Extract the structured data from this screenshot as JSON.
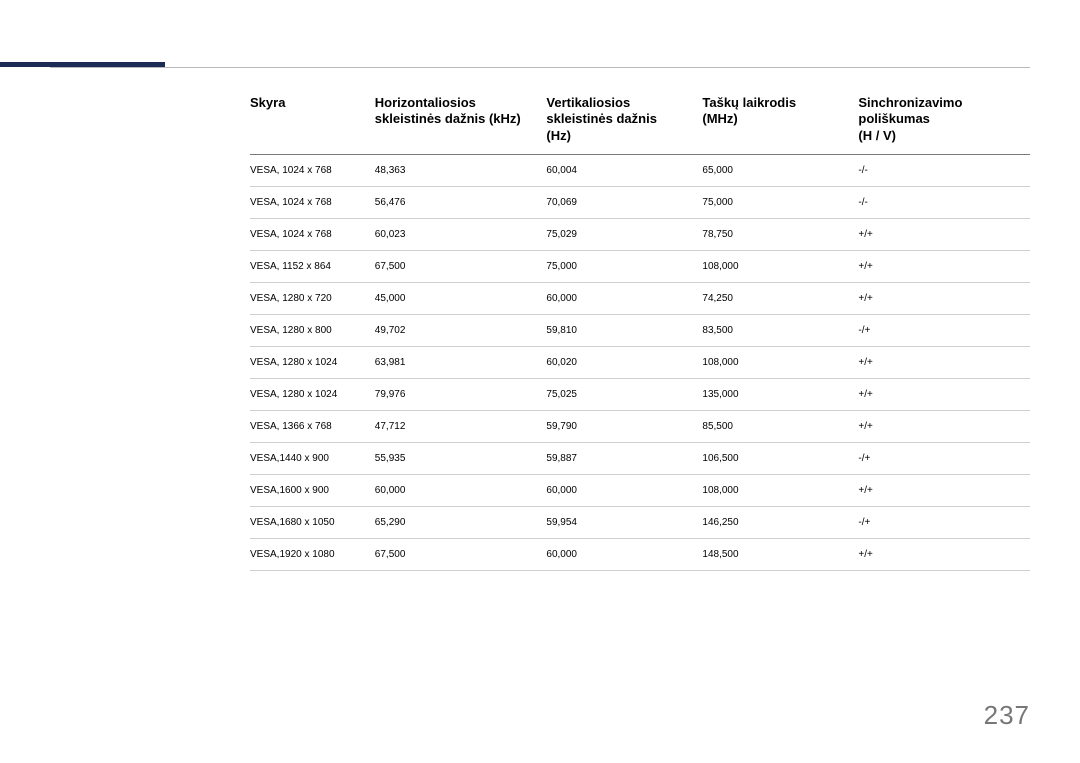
{
  "accent_color": "#1e2a56",
  "page_number": "237",
  "table": {
    "columns": [
      {
        "l1": "Skyra",
        "l2": "",
        "l3": ""
      },
      {
        "l1": "Horizontaliosios",
        "l2": "skleistinės dažnis (kHz)",
        "l3": ""
      },
      {
        "l1": "Vertikaliosios",
        "l2": "skleistinės dažnis",
        "l3": "(Hz)"
      },
      {
        "l1": "Taškų laikrodis",
        "l2": "(MHz)",
        "l3": ""
      },
      {
        "l1": "Sinchronizavimo",
        "l2": "poliškumas",
        "l3": "(H / V)"
      }
    ],
    "rows": [
      [
        "VESA, 1024 x 768",
        "48,363",
        "60,004",
        "65,000",
        "-/-"
      ],
      [
        "VESA, 1024 x 768",
        "56,476",
        "70,069",
        "75,000",
        "-/-"
      ],
      [
        "VESA, 1024 x 768",
        "60,023",
        "75,029",
        "78,750",
        "+/+"
      ],
      [
        "VESA, 1152 x 864",
        "67,500",
        "75,000",
        "108,000",
        "+/+"
      ],
      [
        "VESA, 1280 x 720",
        "45,000",
        "60,000",
        "74,250",
        "+/+"
      ],
      [
        "VESA, 1280 x 800",
        "49,702",
        "59,810",
        "83,500",
        "-/+"
      ],
      [
        "VESA, 1280 x 1024",
        "63,981",
        "60,020",
        "108,000",
        "+/+"
      ],
      [
        "VESA, 1280 x 1024",
        "79,976",
        "75,025",
        "135,000",
        "+/+"
      ],
      [
        "VESA, 1366 x 768",
        "47,712",
        "59,790",
        "85,500",
        "+/+"
      ],
      [
        "VESA,1440 x 900",
        "55,935",
        "59,887",
        "106,500",
        "-/+"
      ],
      [
        "VESA,1600 x 900",
        "60,000",
        "60,000",
        "108,000",
        "+/+"
      ],
      [
        "VESA,1680 x 1050",
        "65,290",
        "59,954",
        "146,250",
        "-/+"
      ],
      [
        "VESA,1920 x 1080",
        "67,500",
        "60,000",
        "148,500",
        "+/+"
      ]
    ]
  }
}
